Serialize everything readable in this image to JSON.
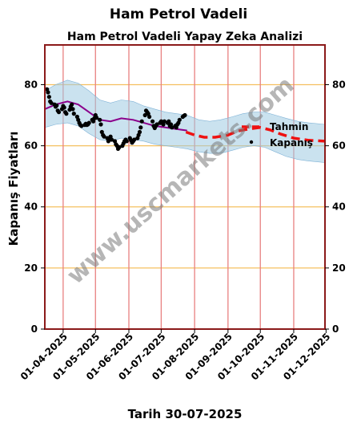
{
  "figure": {
    "suptitle": "Ham Petrol Vadeli",
    "footer": "Tarih 30-07-2025",
    "watermark": "www.uscmarkets.com"
  },
  "chart_data": {
    "type": "line",
    "title": "Ham Petrol Vadeli Yapay Zeka Analizi",
    "xlabel": "",
    "ylabel": "Kapanış Fiyatları",
    "ylim": [
      0,
      93
    ],
    "yticks": [
      0,
      20,
      40,
      60,
      80
    ],
    "xlim": [
      "2025-03-15",
      "2025-11-30"
    ],
    "xtick_labels": [
      "01-04-2025",
      "01-05-2025",
      "01-06-2025",
      "01-07-2025",
      "01-08-2025",
      "01-09-2025",
      "01-10-2025",
      "01-11-2025",
      "01-12-2025"
    ],
    "xtick_dates": [
      "2025-04-01",
      "2025-05-01",
      "2025-06-01",
      "2025-07-01",
      "2025-08-01",
      "2025-09-01",
      "2025-10-01",
      "2025-11-01",
      "2025-12-01"
    ],
    "legend_placement": "center-right",
    "grid": {
      "horizontal": true,
      "vertical": true,
      "horizontal_color": "#f5c060",
      "vertical_color": "#e88080"
    },
    "colors": {
      "closing": "#000000",
      "forecast": "#ee1111",
      "trend": "#8b008b",
      "band": "#9ecae1",
      "frame": "#8b1a1a"
    },
    "series": [
      {
        "name": "Kapanış",
        "kind": "scatter",
        "points": [
          [
            "2025-03-17",
            78.5
          ],
          [
            "2025-03-18",
            77.5
          ],
          [
            "2025-03-19",
            76.0
          ],
          [
            "2025-03-20",
            74.5
          ],
          [
            "2025-03-21",
            74.0
          ],
          [
            "2025-03-24",
            73.5
          ],
          [
            "2025-03-25",
            72.8
          ],
          [
            "2025-03-26",
            73.2
          ],
          [
            "2025-03-27",
            71.5
          ],
          [
            "2025-03-28",
            71.0
          ],
          [
            "2025-03-31",
            72.0
          ],
          [
            "2025-04-01",
            73.0
          ],
          [
            "2025-04-02",
            72.5
          ],
          [
            "2025-04-03",
            71.0
          ],
          [
            "2025-04-04",
            70.5
          ],
          [
            "2025-04-07",
            71.8
          ],
          [
            "2025-04-08",
            72.8
          ],
          [
            "2025-04-09",
            73.5
          ],
          [
            "2025-04-10",
            72.0
          ],
          [
            "2025-04-11",
            70.5
          ],
          [
            "2025-04-14",
            69.5
          ],
          [
            "2025-04-15",
            68.5
          ],
          [
            "2025-04-16",
            67.5
          ],
          [
            "2025-04-17",
            66.8
          ],
          [
            "2025-04-18",
            66.5
          ],
          [
            "2025-04-21",
            66.8
          ],
          [
            "2025-04-22",
            67.2
          ],
          [
            "2025-04-23",
            66.8
          ],
          [
            "2025-04-24",
            67.0
          ],
          [
            "2025-04-25",
            67.5
          ],
          [
            "2025-04-28",
            68.5
          ],
          [
            "2025-04-29",
            68.0
          ],
          [
            "2025-04-30",
            69.0
          ],
          [
            "2025-05-01",
            70.0
          ],
          [
            "2025-05-02",
            69.2
          ],
          [
            "2025-05-05",
            68.5
          ],
          [
            "2025-05-06",
            67.0
          ],
          [
            "2025-05-07",
            64.5
          ],
          [
            "2025-05-08",
            63.5
          ],
          [
            "2025-05-09",
            63.0
          ],
          [
            "2025-05-12",
            62.5
          ],
          [
            "2025-05-13",
            61.5
          ],
          [
            "2025-05-14",
            62.5
          ],
          [
            "2025-05-15",
            63.0
          ],
          [
            "2025-05-16",
            62.0
          ],
          [
            "2025-05-19",
            61.5
          ],
          [
            "2025-05-20",
            60.5
          ],
          [
            "2025-05-21",
            60.0
          ],
          [
            "2025-05-22",
            59.0
          ],
          [
            "2025-05-23",
            59.5
          ],
          [
            "2025-05-26",
            60.0
          ],
          [
            "2025-05-27",
            60.8
          ],
          [
            "2025-05-28",
            61.5
          ],
          [
            "2025-05-29",
            62.0
          ],
          [
            "2025-05-30",
            61.5
          ],
          [
            "2025-06-02",
            62.5
          ],
          [
            "2025-06-03",
            61.8
          ],
          [
            "2025-06-04",
            61.0
          ],
          [
            "2025-06-05",
            61.5
          ],
          [
            "2025-06-06",
            62.0
          ],
          [
            "2025-06-09",
            62.5
          ],
          [
            "2025-06-10",
            63.5
          ],
          [
            "2025-06-11",
            64.5
          ],
          [
            "2025-06-12",
            66.0
          ],
          [
            "2025-06-13",
            68.0
          ],
          [
            "2025-06-16",
            70.0
          ],
          [
            "2025-06-17",
            71.5
          ],
          [
            "2025-06-18",
            71.0
          ],
          [
            "2025-06-19",
            70.5
          ],
          [
            "2025-06-20",
            69.5
          ],
          [
            "2025-06-23",
            68.0
          ],
          [
            "2025-06-24",
            66.5
          ],
          [
            "2025-06-25",
            65.8
          ],
          [
            "2025-06-26",
            66.5
          ],
          [
            "2025-06-27",
            67.0
          ],
          [
            "2025-06-30",
            67.5
          ],
          [
            "2025-07-01",
            68.0
          ],
          [
            "2025-07-02",
            67.5
          ],
          [
            "2025-07-03",
            67.0
          ],
          [
            "2025-07-04",
            68.0
          ],
          [
            "2025-07-07",
            67.5
          ],
          [
            "2025-07-08",
            68.0
          ],
          [
            "2025-07-09",
            66.5
          ],
          [
            "2025-07-10",
            67.0
          ],
          [
            "2025-07-11",
            66.0
          ],
          [
            "2025-07-14",
            66.5
          ],
          [
            "2025-07-15",
            66.0
          ],
          [
            "2025-07-16",
            67.0
          ],
          [
            "2025-07-17",
            67.5
          ],
          [
            "2025-07-18",
            68.5
          ],
          [
            "2025-07-21",
            69.5
          ],
          [
            "2025-07-22",
            69.8
          ],
          [
            "2025-07-23",
            70.0
          ]
        ]
      },
      {
        "name": "Tahmin",
        "kind": "dashed-line",
        "points": [
          [
            "2025-07-24",
            64.5
          ],
          [
            "2025-08-01",
            63.5
          ],
          [
            "2025-08-10",
            62.8
          ],
          [
            "2025-08-20",
            62.8
          ],
          [
            "2025-09-01",
            63.5
          ],
          [
            "2025-09-10",
            64.8
          ],
          [
            "2025-09-20",
            65.5
          ],
          [
            "2025-10-01",
            66.0
          ],
          [
            "2025-10-10",
            65.2
          ],
          [
            "2025-10-20",
            63.8
          ],
          [
            "2025-11-01",
            62.5
          ],
          [
            "2025-11-15",
            61.8
          ],
          [
            "2025-11-30",
            61.5
          ]
        ]
      },
      {
        "kind": "trend-line",
        "points": [
          [
            "2025-03-15",
            72.0
          ],
          [
            "2025-03-25",
            73.5
          ],
          [
            "2025-04-05",
            74.5
          ],
          [
            "2025-04-15",
            73.5
          ],
          [
            "2025-04-25",
            71.0
          ],
          [
            "2025-05-05",
            68.5
          ],
          [
            "2025-05-15",
            68.0
          ],
          [
            "2025-05-25",
            69.0
          ],
          [
            "2025-06-05",
            68.5
          ],
          [
            "2025-06-15",
            67.5
          ],
          [
            "2025-06-25",
            66.5
          ],
          [
            "2025-07-05",
            66.0
          ],
          [
            "2025-07-15",
            65.5
          ],
          [
            "2025-07-25",
            65.0
          ]
        ]
      },
      {
        "kind": "band",
        "upper": [
          [
            "2025-03-15",
            78.0
          ],
          [
            "2025-03-25",
            80.0
          ],
          [
            "2025-04-05",
            81.5
          ],
          [
            "2025-04-15",
            80.5
          ],
          [
            "2025-04-25",
            78.0
          ],
          [
            "2025-05-05",
            75.0
          ],
          [
            "2025-05-15",
            74.0
          ],
          [
            "2025-05-25",
            75.0
          ],
          [
            "2025-06-05",
            74.5
          ],
          [
            "2025-06-15",
            73.0
          ],
          [
            "2025-06-25",
            72.0
          ],
          [
            "2025-07-05",
            71.0
          ],
          [
            "2025-07-15",
            70.5
          ],
          [
            "2025-07-25",
            70.0
          ],
          [
            "2025-08-05",
            68.5
          ],
          [
            "2025-08-15",
            68.0
          ],
          [
            "2025-08-25",
            68.5
          ],
          [
            "2025-09-05",
            69.5
          ],
          [
            "2025-09-15",
            70.5
          ],
          [
            "2025-09-25",
            71.0
          ],
          [
            "2025-10-05",
            71.0
          ],
          [
            "2025-10-15",
            70.0
          ],
          [
            "2025-10-25",
            69.0
          ],
          [
            "2025-11-05",
            68.0
          ],
          [
            "2025-11-15",
            67.5
          ],
          [
            "2025-11-30",
            67.0
          ]
        ],
        "lower": [
          [
            "2025-03-15",
            66.0
          ],
          [
            "2025-03-25",
            67.0
          ],
          [
            "2025-04-05",
            67.5
          ],
          [
            "2025-04-15",
            66.5
          ],
          [
            "2025-04-25",
            64.0
          ],
          [
            "2025-05-05",
            62.0
          ],
          [
            "2025-05-15",
            61.5
          ],
          [
            "2025-05-25",
            62.5
          ],
          [
            "2025-06-05",
            62.0
          ],
          [
            "2025-06-15",
            61.5
          ],
          [
            "2025-06-25",
            60.5
          ],
          [
            "2025-07-05",
            60.0
          ],
          [
            "2025-07-15",
            59.5
          ],
          [
            "2025-07-25",
            59.0
          ],
          [
            "2025-08-05",
            58.0
          ],
          [
            "2025-08-15",
            57.5
          ],
          [
            "2025-08-25",
            57.5
          ],
          [
            "2025-09-05",
            58.5
          ],
          [
            "2025-09-15",
            59.5
          ],
          [
            "2025-09-25",
            60.0
          ],
          [
            "2025-10-05",
            59.5
          ],
          [
            "2025-10-15",
            58.0
          ],
          [
            "2025-10-25",
            56.5
          ],
          [
            "2025-11-05",
            55.5
          ],
          [
            "2025-11-15",
            55.0
          ],
          [
            "2025-11-30",
            54.5
          ]
        ]
      }
    ]
  }
}
